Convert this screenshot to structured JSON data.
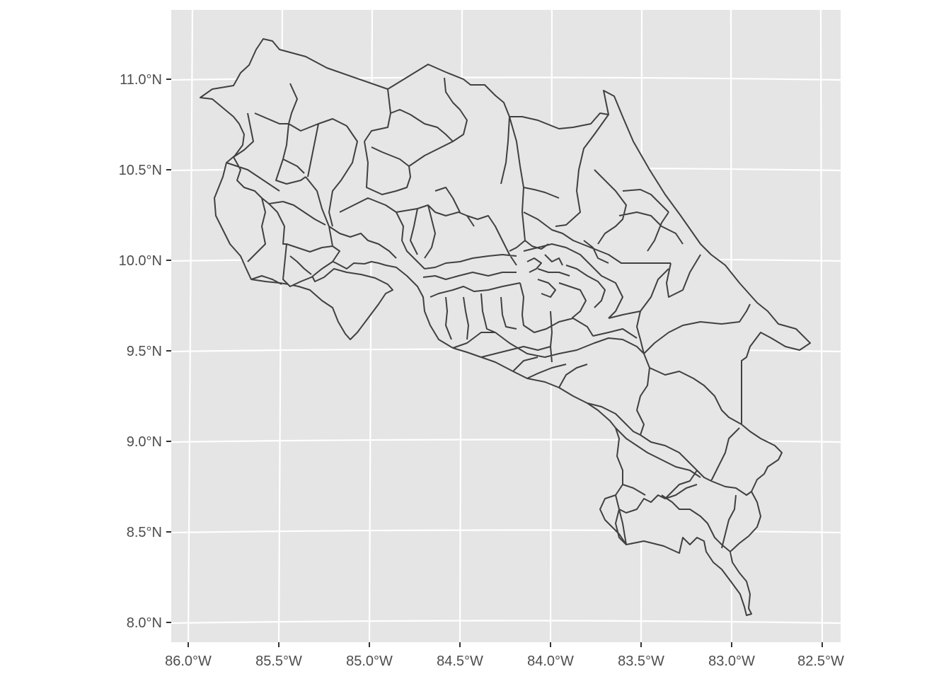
{
  "map": {
    "panel_background": "#e5e5e5",
    "grid_color": "#ffffff",
    "land_fill": "#e6e6e6",
    "border_color": "#404040",
    "x_ticks": [
      "86.0°W",
      "85.5°W",
      "85.0°W",
      "84.5°W",
      "84.0°W",
      "83.5°W",
      "83.0°W",
      "82.5°W"
    ],
    "y_ticks": [
      "11.0°N",
      "10.5°N",
      "10.0°N",
      "9.5°N",
      "9.0°N",
      "8.5°N",
      "8.0°N"
    ]
  }
}
